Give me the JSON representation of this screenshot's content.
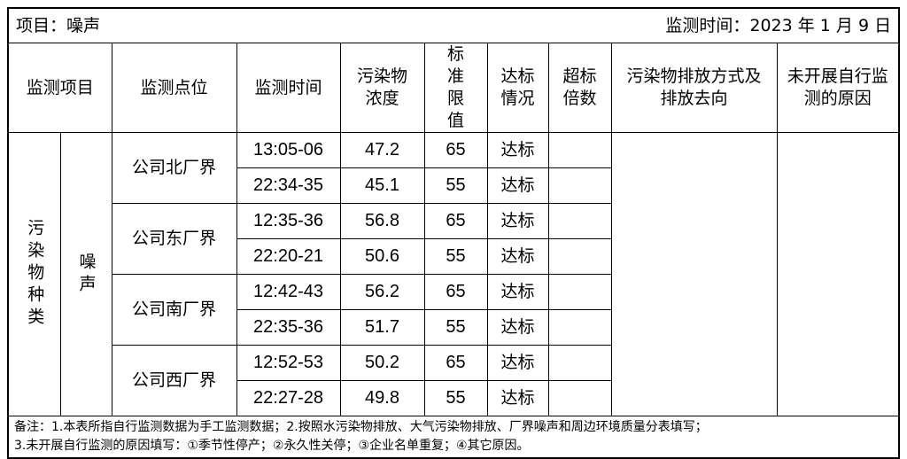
{
  "title": {
    "project": "项目：噪声",
    "date": "监测时间：2023 年 1 月 9 日"
  },
  "headers": [
    "监测项目",
    "监测点位",
    "监测时间",
    "污染物浓度",
    "标准限值",
    "达标情况",
    "超标倍数",
    "污染物排放方式及排放去向",
    "未开展自行监测的原因"
  ],
  "category": "污染物种类",
  "item": "噪声",
  "sites": [
    "公司北厂界",
    "公司东厂界",
    "公司南厂界",
    "公司西厂界"
  ],
  "rows": [
    {
      "time": "13:05-06",
      "value": "47.2",
      "limit": "65",
      "status": "达标"
    },
    {
      "time": "22:34-35",
      "value": "45.1",
      "limit": "55",
      "status": "达标"
    },
    {
      "time": "12:35-36",
      "value": "56.8",
      "limit": "65",
      "status": "达标"
    },
    {
      "time": "22:20-21",
      "value": "50.6",
      "limit": "55",
      "status": "达标"
    },
    {
      "time": "12:42-43",
      "value": "56.2",
      "limit": "65",
      "status": "达标"
    },
    {
      "time": "22:35-36",
      "value": "51.7",
      "limit": "55",
      "status": "达标"
    },
    {
      "time": "12:52-53",
      "value": "50.2",
      "limit": "65",
      "status": "达标"
    },
    {
      "time": "22:27-28",
      "value": "49.8",
      "limit": "55",
      "status": "达标"
    }
  ],
  "notes": [
    "备注：1.本表所指自行监测数据为手工监测数据；2.按照水污染物排放、大气污染物排放、厂界噪声和周边环境质量分表填写；",
    "3.未开展自行监测的原因填写：①季节性停产；②永久性关停；③企业名单重复；④其它原因。"
  ]
}
